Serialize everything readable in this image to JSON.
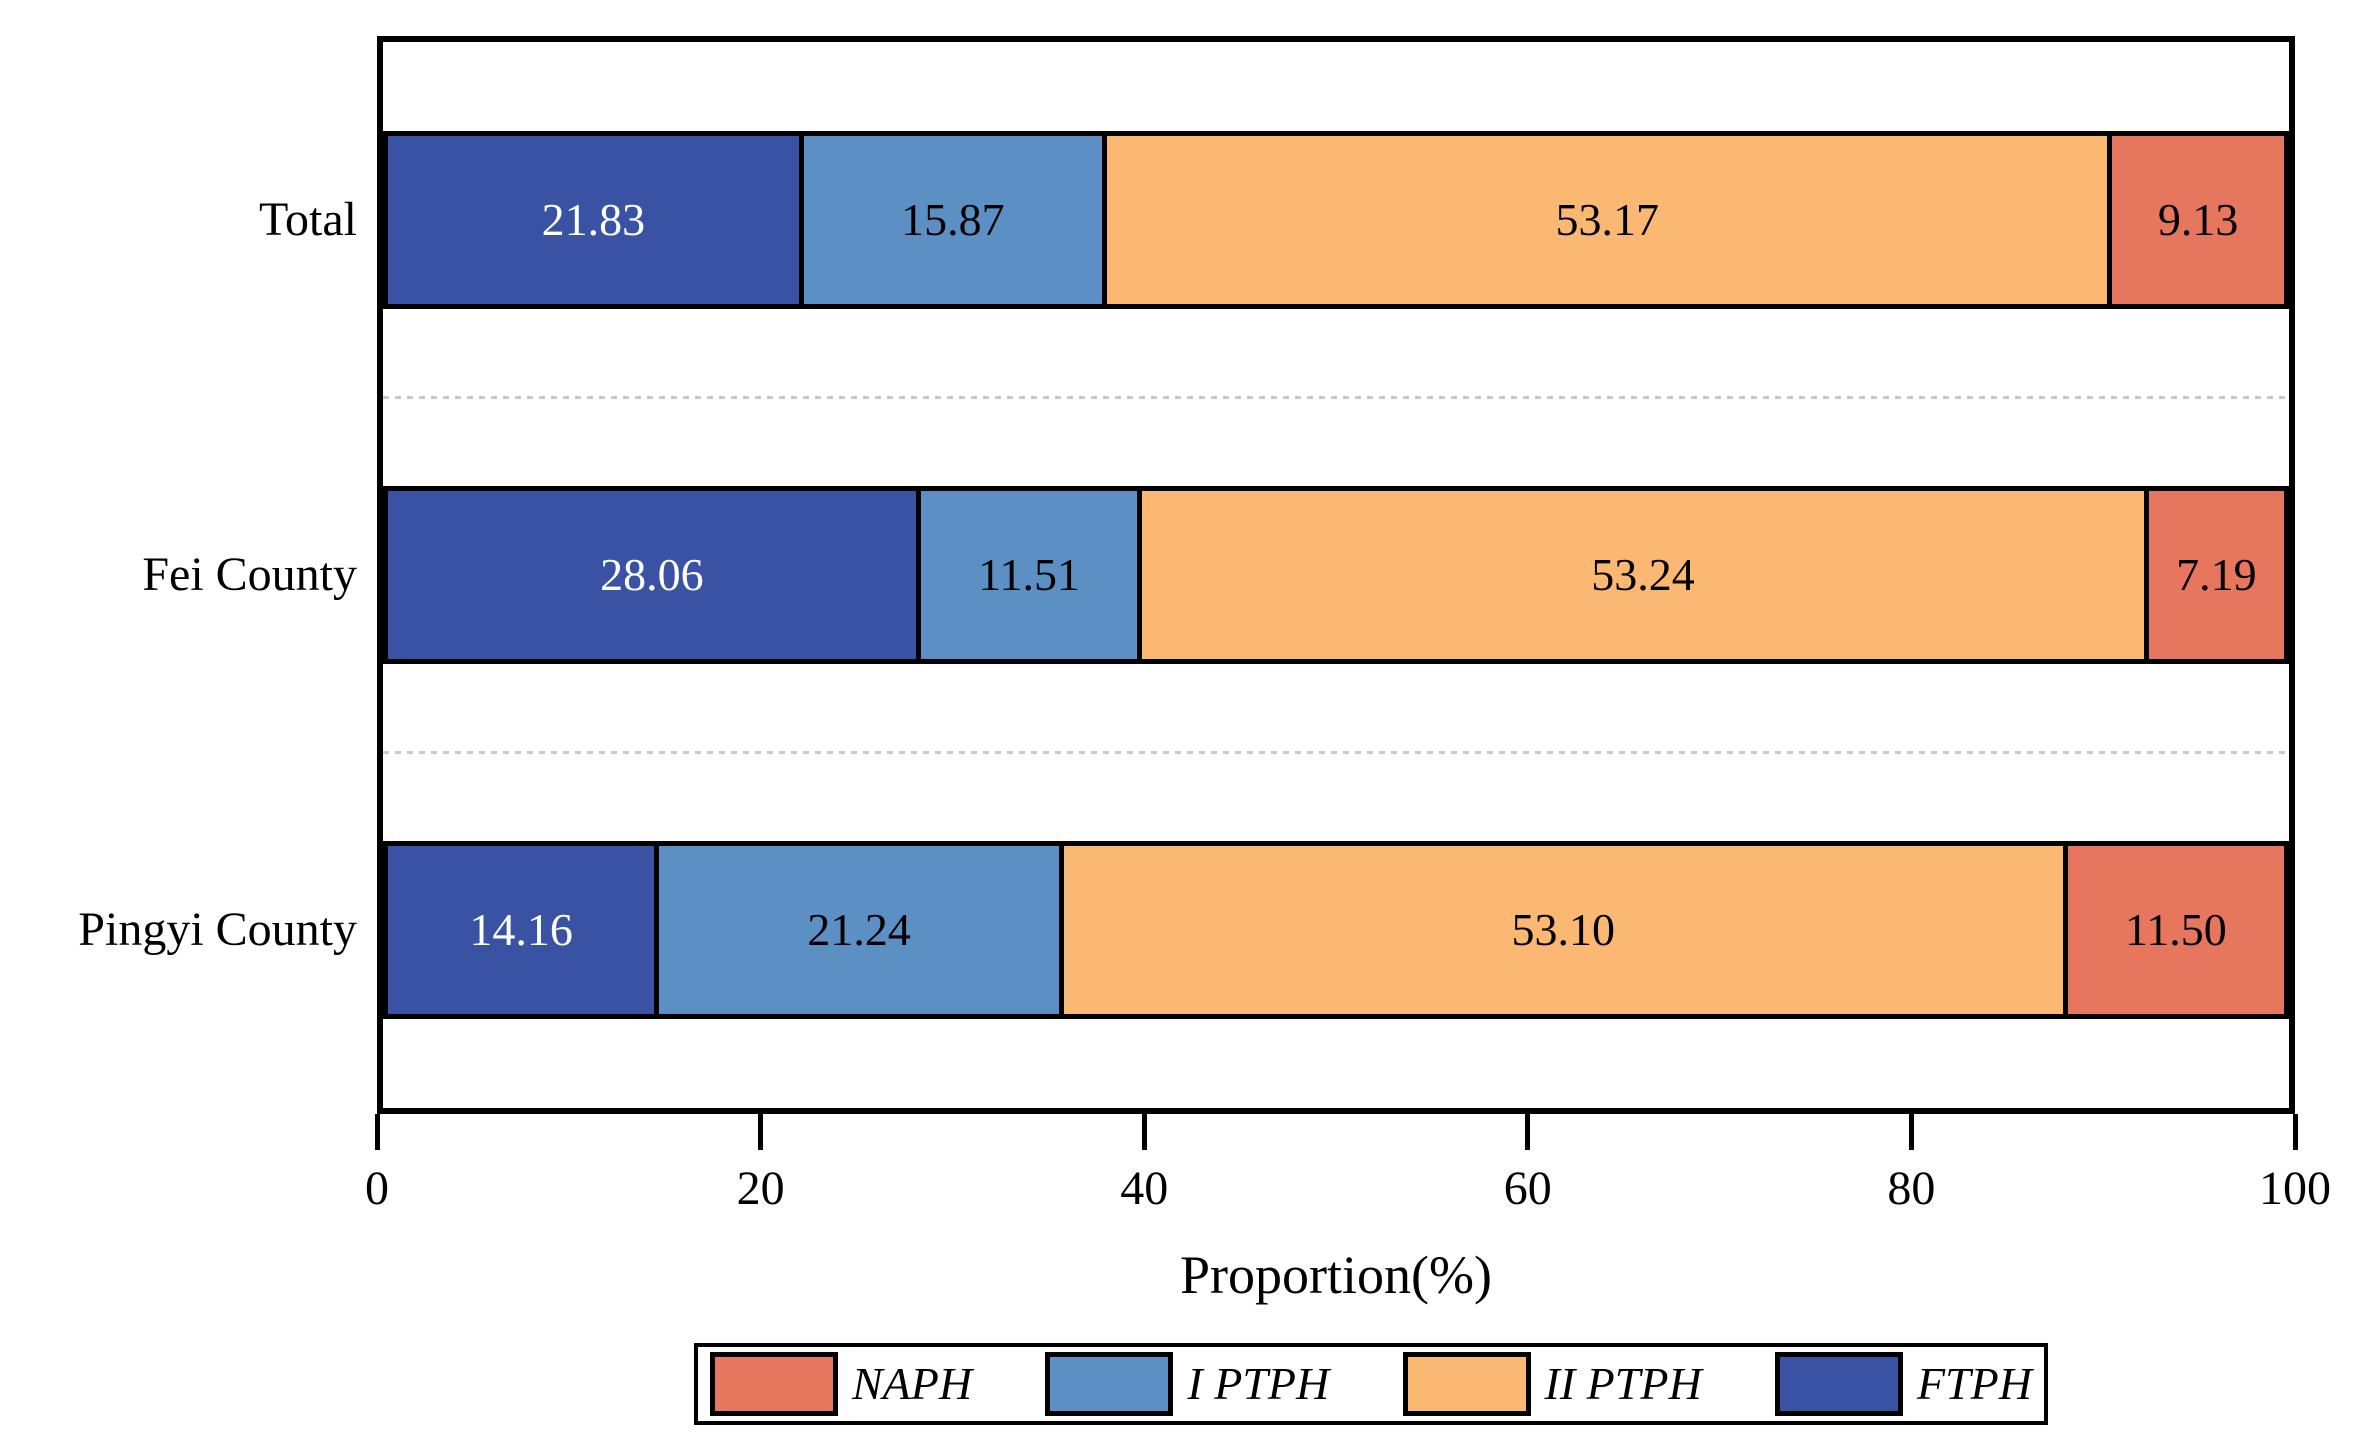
{
  "figure": {
    "background": "#ffffff",
    "axis_color": "#000000",
    "separator_color": "#c9c9c9"
  },
  "chart_data": {
    "type": "bar",
    "orientation": "horizontal",
    "stacked": true,
    "xlabel": "Proportion(%)",
    "xlim": [
      0,
      100
    ],
    "xticks": [
      0,
      20,
      40,
      60,
      80,
      100
    ],
    "grid": "dashed separator lines between category rows",
    "legend_position": "bottom",
    "value_labels_decimals": 2,
    "categories": [
      "Total",
      "Fei County",
      "Pingyi County"
    ],
    "series": [
      {
        "name": "FTPH",
        "color": "#3A52A4",
        "label_color": "#ffffff",
        "values": [
          21.83,
          28.06,
          14.16
        ]
      },
      {
        "name": "I PTPH",
        "color": "#5C90C4",
        "label_color": "#000000",
        "values": [
          15.87,
          11.51,
          21.24
        ]
      },
      {
        "name": "II PTPH",
        "color": "#FBB873",
        "label_color": "#000000",
        "values": [
          53.17,
          53.24,
          53.1
        ]
      },
      {
        "name": "NAPH",
        "color": "#E7765F",
        "label_color": "#000000",
        "values": [
          9.13,
          7.19,
          11.5
        ]
      }
    ],
    "legend": [
      {
        "label": "NAPH",
        "color": "#E7765F"
      },
      {
        "label": "I PTPH",
        "color": "#5C90C4"
      },
      {
        "label": "II PTPH",
        "color": "#FBB873"
      },
      {
        "label": "FTPH",
        "color": "#3A52A4"
      }
    ]
  }
}
